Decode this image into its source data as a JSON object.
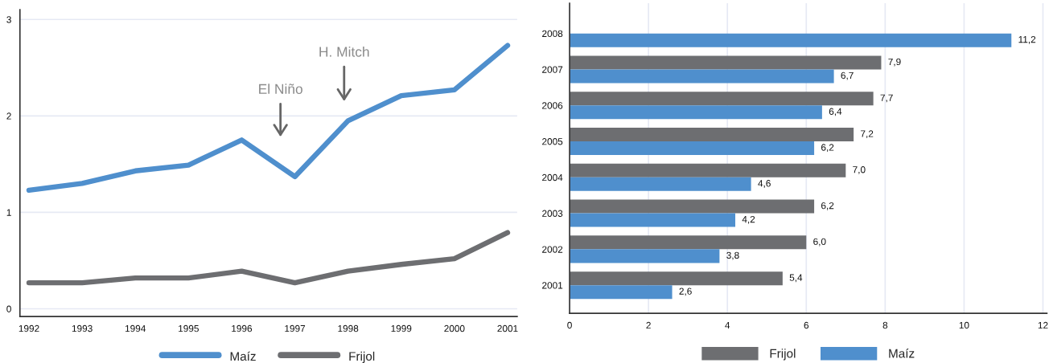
{
  "chart_data": [
    {
      "type": "line",
      "x": [
        1992,
        1993,
        1994,
        1995,
        1996,
        1997,
        1998,
        1999,
        2000,
        2001
      ],
      "xlim": [
        1991.83,
        2001.18
      ],
      "xticks": [
        1992,
        1993,
        1994,
        1995,
        1996,
        1997,
        1998,
        1999,
        2000,
        2001
      ],
      "ylim": [
        -0.08,
        3.1
      ],
      "yticks": [
        0,
        1,
        2,
        3
      ],
      "grid": "y",
      "legend": "bottom",
      "series": [
        {
          "name": "Maíz",
          "color": "#4f8fcd",
          "values": [
            1.23,
            1.3,
            1.43,
            1.49,
            1.75,
            1.37,
            1.95,
            2.21,
            2.27,
            2.73
          ]
        },
        {
          "name": "Frijol",
          "color": "#6d6e71",
          "values": [
            0.27,
            0.27,
            0.32,
            0.32,
            0.39,
            0.27,
            0.39,
            0.46,
            0.52,
            0.79
          ]
        }
      ],
      "annotations": [
        "El Niño",
        "H. Mitch"
      ]
    },
    {
      "type": "bar",
      "orientation": "horizontal",
      "categories": [
        "2008",
        "2007",
        "2006",
        "2005",
        "2004",
        "2003",
        "2002",
        "2001"
      ],
      "xlim": [
        0,
        12.1
      ],
      "xticks": [
        0,
        2,
        4,
        6,
        8,
        10,
        12
      ],
      "grid": "x",
      "legend": "bottom",
      "series": [
        {
          "name": "Frijol",
          "color": "#6d6e71",
          "values": [
            null,
            7.9,
            7.7,
            7.2,
            7.0,
            6.2,
            6.0,
            5.4
          ],
          "value_labels": [
            null,
            "7,9",
            "7,7",
            "7,2",
            "7,0",
            "6,2",
            "6,0",
            "5,4"
          ]
        },
        {
          "name": "Maíz",
          "color": "#4f8fcd",
          "values": [
            11.2,
            6.7,
            6.4,
            6.2,
            4.6,
            4.2,
            3.8,
            2.6
          ],
          "value_labels": [
            "11,2",
            "6,7",
            "6,4",
            "6,2",
            "4,6",
            "4,2",
            "3,8",
            "2,6"
          ]
        }
      ]
    }
  ]
}
